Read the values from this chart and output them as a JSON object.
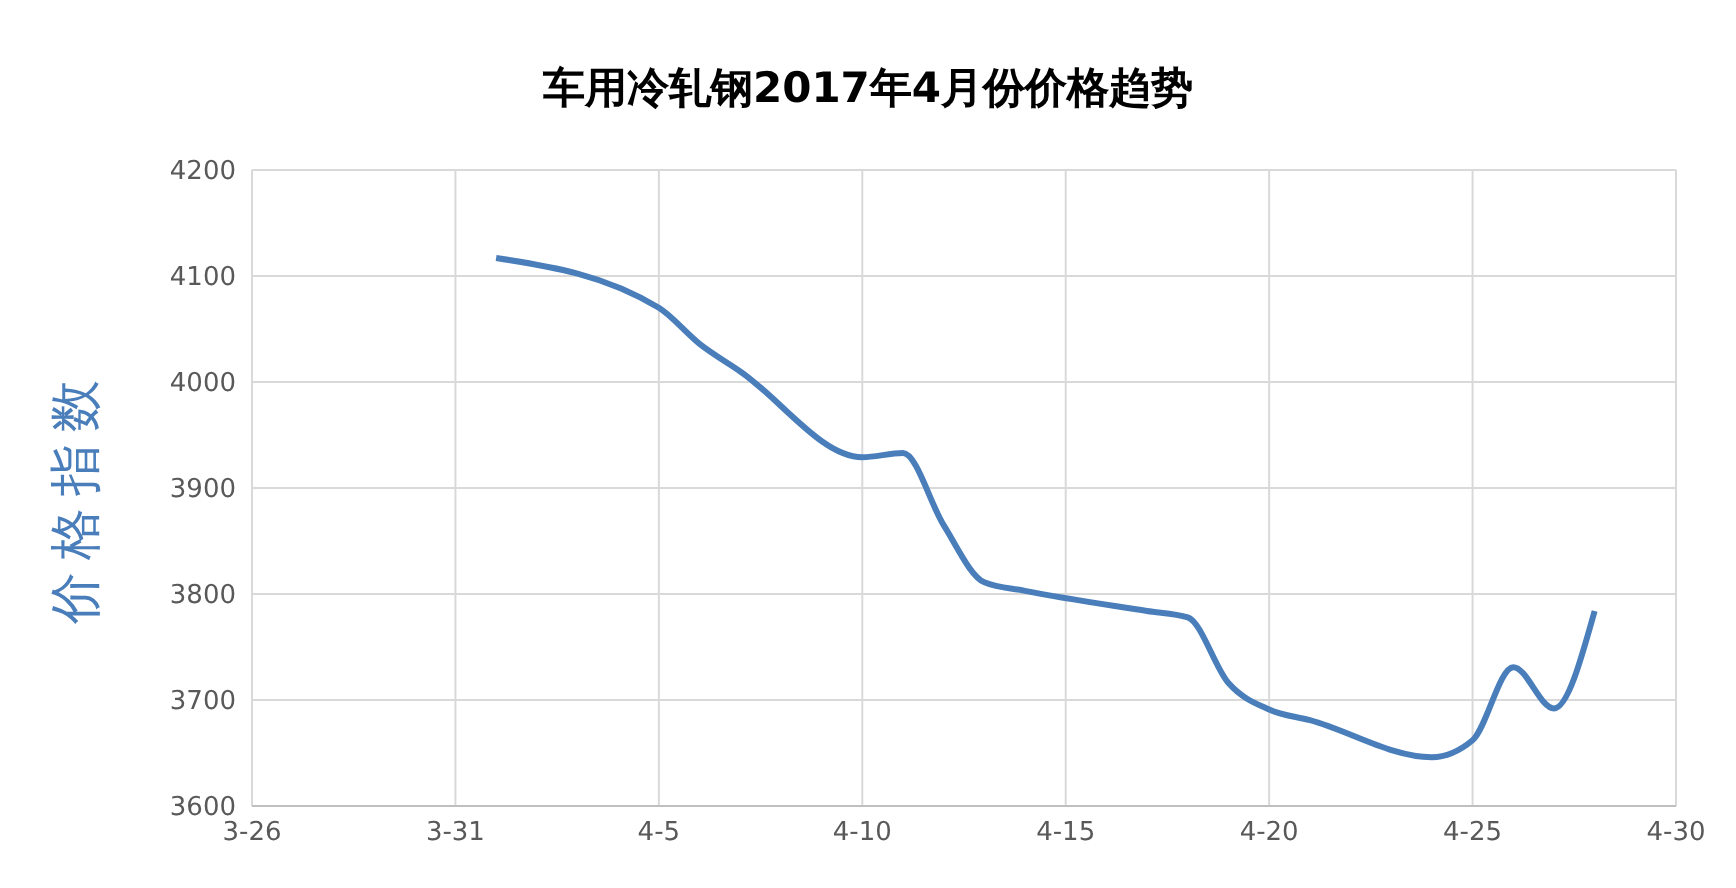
{
  "chart_data": {
    "type": "line",
    "title": "车用冷轧钢2017年4月份价格趋势",
    "ylabel": "价格指数",
    "x": [
      "--04-01",
      "--04-05",
      "--04-06",
      "--04-07",
      "--04-10",
      "--04-11",
      "--04-12",
      "--04-13",
      "--04-14",
      "--04-17",
      "--04-18",
      "--04-19",
      "--04-20",
      "--04-21",
      "--04-24",
      "--04-25",
      "--04-26",
      "--04-27",
      "--04-28"
    ],
    "series": [
      {
        "color": "#4a7ebb",
        "values": [
          4117,
          4070,
          4036,
          4010,
          3929,
          3933,
          3865,
          3811,
          3803,
          3784,
          3778,
          3716,
          3691,
          3681,
          3646,
          3662,
          3731,
          3692,
          3784
        ]
      }
    ],
    "xlim": [
      "--03-26",
      "--04-30"
    ],
    "xticks": [
      {
        "value": "--03-26",
        "label": "3-26"
      },
      {
        "value": "--03-31",
        "label": "3-31"
      },
      {
        "value": "--04-05",
        "label": "4-5"
      },
      {
        "value": "--04-10",
        "label": "4-10"
      },
      {
        "value": "--04-15",
        "label": "4-15"
      },
      {
        "value": "--04-20",
        "label": "4-20"
      },
      {
        "value": "--04-25",
        "label": "4-25"
      },
      {
        "value": "--04-30",
        "label": "4-30"
      }
    ],
    "ylim": [
      3600,
      4200
    ],
    "yticks": [
      3600,
      3700,
      3800,
      3900,
      4000,
      4100,
      4200
    ],
    "grid": true,
    "legend": false,
    "marker": "none",
    "line_style": "solid"
  }
}
